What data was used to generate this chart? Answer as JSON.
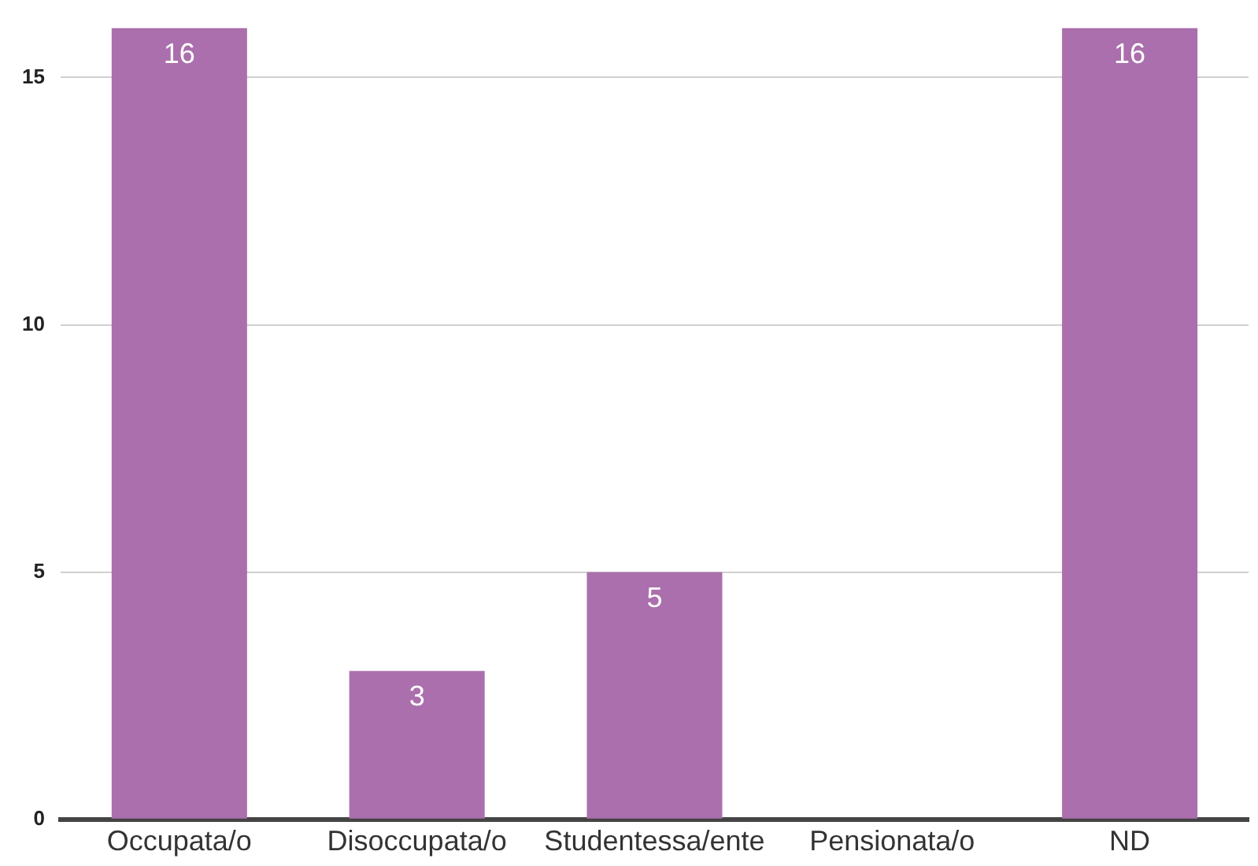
{
  "chart_data": {
    "type": "bar",
    "categories": [
      "Occupata/o",
      "Disoccupata/o",
      "Studentessa/ente",
      "Pensionata/o",
      "ND"
    ],
    "values": [
      16,
      3,
      5,
      0,
      16
    ],
    "value_labels": [
      "16",
      "3",
      "5",
      null,
      "16"
    ],
    "color": "#ab6fad",
    "ylim": [
      0,
      16
    ],
    "yticks": [
      0,
      5,
      10,
      15
    ],
    "grid": "y",
    "legend": false
  }
}
